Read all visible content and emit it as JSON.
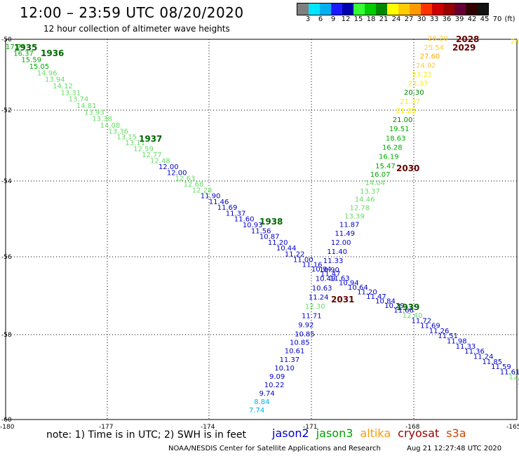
{
  "title": "12:00 – 23:59 UTC 08/20/2020",
  "subtitle": "12 hour collection of altimeter wave heights",
  "colors": {
    "jason2": "#0000c8",
    "jason3": "#00a000",
    "altika": "#ff9900",
    "cryosat": "#990000",
    "s3a": "#cc4400",
    "grid": "#000000",
    "frame": "#000000"
  },
  "swh_scale": {
    "ticks": [
      "3",
      "6",
      "9",
      "12",
      "15",
      "18",
      "21",
      "24",
      "27",
      "30",
      "33",
      "36",
      "39",
      "42",
      "45",
      "70",
      "(ft)"
    ],
    "colors": [
      "#808080",
      "#00e5ff",
      "#00b0f0",
      "#1a1aff",
      "#0000aa",
      "#33ff33",
      "#00cc00",
      "#008800",
      "#ffff00",
      "#ffcc00",
      "#ff9900",
      "#ff3300",
      "#cc0000",
      "#990000",
      "#660033",
      "#330000",
      "#111111"
    ]
  },
  "axes": {
    "lat_ticks": [
      "-50",
      "-52",
      "-54",
      "-56",
      "-58",
      "-60"
    ],
    "lon_ticks": [
      "-180",
      "-177",
      "-174",
      "-171",
      "-168",
      "-165"
    ]
  },
  "passes": [
    {
      "label": "1935",
      "pass_color": "#006600"
    },
    {
      "label": "1936",
      "pass_color": "#006600"
    },
    {
      "label": "1937",
      "pass_color": "#006600"
    },
    {
      "label": "1938",
      "pass_color": "#006600"
    },
    {
      "label": "1939",
      "pass_color": "#006600"
    },
    {
      "label": "2028",
      "pass_color": "#660000"
    },
    {
      "label": "2029",
      "pass_color": "#660000"
    },
    {
      "label": "2030",
      "pass_color": "#660000"
    },
    {
      "label": "2031",
      "pass_color": "#660000"
    }
  ],
  "track_descending": [
    {
      "v": "17.74",
      "c": "#00aa00"
    },
    {
      "v": "16.37",
      "c": "#00aa00"
    },
    {
      "v": "15.59",
      "c": "#00aa00"
    },
    {
      "v": "15.05",
      "c": "#00aa00"
    },
    {
      "v": "14.96",
      "c": "#66dd66"
    },
    {
      "v": "13.94",
      "c": "#66dd66"
    },
    {
      "v": "14.12",
      "c": "#66dd66"
    },
    {
      "v": "13.31",
      "c": "#66dd66"
    },
    {
      "v": "13.74",
      "c": "#66dd66"
    },
    {
      "v": "14.81",
      "c": "#66dd66"
    },
    {
      "v": "13.93",
      "c": "#66dd66"
    },
    {
      "v": "13.38",
      "c": "#66dd66"
    },
    {
      "v": "14.08",
      "c": "#66dd66"
    },
    {
      "v": "13.36",
      "c": "#66dd66"
    },
    {
      "v": "13.15",
      "c": "#66dd66"
    },
    {
      "v": "13.11",
      "c": "#66dd66"
    },
    {
      "v": "12.59",
      "c": "#66dd66"
    },
    {
      "v": "12.77",
      "c": "#66dd66"
    },
    {
      "v": "12.48",
      "c": "#66dd66"
    },
    {
      "v": "12.00",
      "c": "#0000cc"
    },
    {
      "v": "12.00",
      "c": "#0000cc"
    },
    {
      "v": "12.63",
      "c": "#66dd66"
    },
    {
      "v": "12.68",
      "c": "#66dd66"
    },
    {
      "v": "12.28",
      "c": "#66dd66"
    },
    {
      "v": "11.90",
      "c": "#0000cc"
    },
    {
      "v": "11.46",
      "c": "#0000cc"
    },
    {
      "v": "11.69",
      "c": "#0000cc"
    },
    {
      "v": "11.37",
      "c": "#0000cc"
    },
    {
      "v": "11.60",
      "c": "#0000cc"
    },
    {
      "v": "10.93",
      "c": "#0000cc"
    },
    {
      "v": "11.56",
      "c": "#0000cc"
    },
    {
      "v": "10.87",
      "c": "#0000cc"
    },
    {
      "v": "11.20",
      "c": "#0000cc"
    },
    {
      "v": "10.44",
      "c": "#0000cc"
    },
    {
      "v": "11.22",
      "c": "#0000cc"
    },
    {
      "v": "11.00",
      "c": "#0000cc"
    },
    {
      "v": "11.16",
      "c": "#0000cc"
    },
    {
      "v": "10.94",
      "c": "#0000cc"
    },
    {
      "v": "11.47",
      "c": "#0000cc"
    },
    {
      "v": "11.63",
      "c": "#0000cc"
    },
    {
      "v": "10.94",
      "c": "#0000cc"
    },
    {
      "v": "10.64",
      "c": "#0000cc"
    },
    {
      "v": "11.20",
      "c": "#0000cc"
    },
    {
      "v": "11.47",
      "c": "#0000cc"
    },
    {
      "v": "10.84",
      "c": "#0000cc"
    },
    {
      "v": "10.29",
      "c": "#0000cc"
    },
    {
      "v": "11.66",
      "c": "#0000cc"
    },
    {
      "v": "12.40",
      "c": "#66dd66"
    },
    {
      "v": "11.72",
      "c": "#0000cc"
    },
    {
      "v": "11.69",
      "c": "#0000cc"
    },
    {
      "v": "11.26",
      "c": "#0000cc"
    },
    {
      "v": "11.51",
      "c": "#0000cc"
    },
    {
      "v": "11.98",
      "c": "#0000cc"
    },
    {
      "v": "11.33",
      "c": "#0000cc"
    },
    {
      "v": "11.36",
      "c": "#0000cc"
    },
    {
      "v": "11.24",
      "c": "#0000cc"
    },
    {
      "v": "11.85",
      "c": "#0000cc"
    },
    {
      "v": "11.59",
      "c": "#0000cc"
    },
    {
      "v": "11.61",
      "c": "#0000cc"
    },
    {
      "v": "12.34",
      "c": "#66dd66"
    },
    {
      "v": "11",
      "c": "#0000cc"
    }
  ],
  "track_ascending": [
    {
      "v": "26.20",
      "c": "#ffcc33"
    },
    {
      "v": "25.54",
      "c": "#ffcc33"
    },
    {
      "v": "27.60",
      "c": "#ffaa00"
    },
    {
      "v": "24.92",
      "c": "#ffcc33"
    },
    {
      "v": "23.21",
      "c": "#ffee00"
    },
    {
      "v": "23.37",
      "c": "#ffee00"
    },
    {
      "v": "20.30",
      "c": "#008800"
    },
    {
      "v": "21.37",
      "c": "#ffee00"
    },
    {
      "v": "21.22",
      "c": "#ffee00"
    },
    {
      "v": "21.00",
      "c": "#008800"
    },
    {
      "v": "19.51",
      "c": "#00aa00"
    },
    {
      "v": "18.63",
      "c": "#00aa00"
    },
    {
      "v": "16.28",
      "c": "#00aa00"
    },
    {
      "v": "16.19",
      "c": "#00aa00"
    },
    {
      "v": "15.47",
      "c": "#00aa00"
    },
    {
      "v": "16.07",
      "c": "#00aa00"
    },
    {
      "v": "14.04",
      "c": "#66dd66"
    },
    {
      "v": "13.37",
      "c": "#66dd66"
    },
    {
      "v": "14.46",
      "c": "#66dd66"
    },
    {
      "v": "12.78",
      "c": "#66dd66"
    },
    {
      "v": "13.39",
      "c": "#66dd66"
    },
    {
      "v": "11.87",
      "c": "#0000cc"
    },
    {
      "v": "11.49",
      "c": "#0000cc"
    },
    {
      "v": "12.00",
      "c": "#0000cc"
    },
    {
      "v": "11.40",
      "c": "#0000cc"
    },
    {
      "v": "11.33",
      "c": "#0000cc"
    },
    {
      "v": "10.90",
      "c": "#0000cc"
    },
    {
      "v": "10.49",
      "c": "#0000cc"
    },
    {
      "v": "10.63",
      "c": "#0000cc"
    },
    {
      "v": "11.24",
      "c": "#0000cc"
    },
    {
      "v": "12.30",
      "c": "#66dd66"
    },
    {
      "v": "11.71",
      "c": "#0000cc"
    },
    {
      "v": "9.92",
      "c": "#0000cc"
    },
    {
      "v": "10.85",
      "c": "#0000cc"
    },
    {
      "v": "10.85",
      "c": "#0000cc"
    },
    {
      "v": "10.61",
      "c": "#0000cc"
    },
    {
      "v": "11.37",
      "c": "#0000cc"
    },
    {
      "v": "10.10",
      "c": "#0000cc"
    },
    {
      "v": "9.09",
      "c": "#0000cc"
    },
    {
      "v": "10.22",
      "c": "#0000cc"
    },
    {
      "v": "9.74",
      "c": "#0000cc"
    },
    {
      "v": "8.84",
      "c": "#00b0f0"
    },
    {
      "v": "7.74",
      "c": "#00b0f0"
    }
  ],
  "edge_values": [
    {
      "v": "24",
      "c": "#ffee00"
    }
  ],
  "satellites": [
    {
      "name": "jason2",
      "color": "#0000c8"
    },
    {
      "name": "jason3",
      "color": "#00a000"
    },
    {
      "name": "altika",
      "color": "#ff9900"
    },
    {
      "name": "cryosat",
      "color": "#990000"
    },
    {
      "name": "s3a",
      "color": "#cc4400"
    }
  ],
  "footer": {
    "note": "note:  1) Time is in UTC;  2) SWH is in feet",
    "credit": "NOAA/NESDIS Center for Satellite Applications and Research",
    "timestamp": "Aug 21 12:27:48 UTC 2020"
  }
}
